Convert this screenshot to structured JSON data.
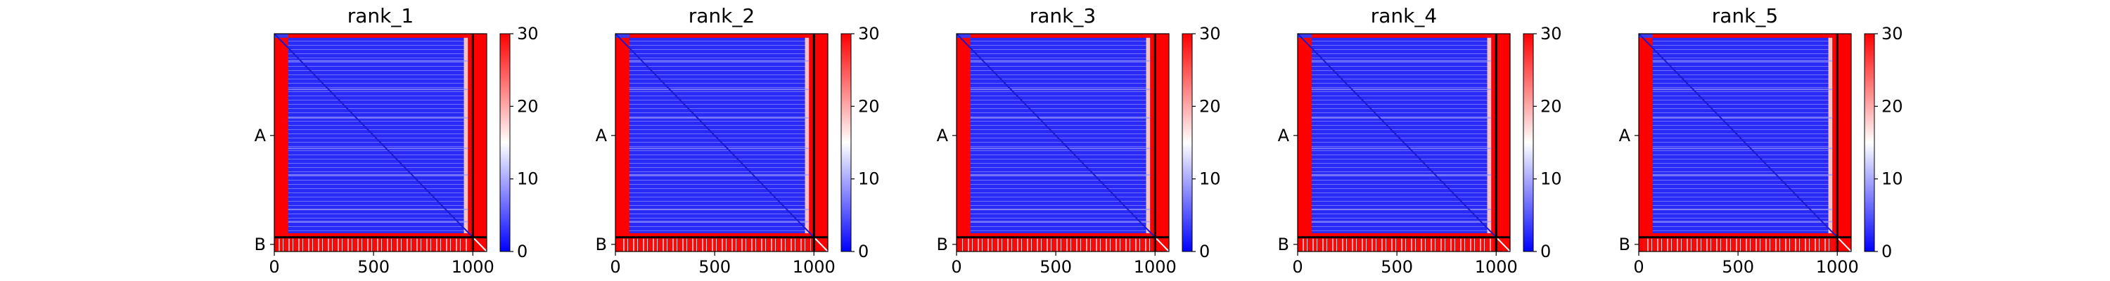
{
  "chart_data": [
    {
      "type": "heatmap",
      "title": "rank_1",
      "x_ticks": [
        "0",
        "500",
        "1000"
      ],
      "x_tick_values": [
        0,
        500,
        1000
      ],
      "y_chain_labels": [
        "A",
        "B"
      ],
      "chain_boundary": 1000,
      "total_length": 1070,
      "colorbar": {
        "min": 0,
        "max": 30,
        "ticks": [
          "0",
          "10",
          "20",
          "30"
        ],
        "colormap": "bwr"
      },
      "matrix_summary": "low values (blue) in chain A x chain A block with dark blue diagonal; high values (red) in edge rows/columns and chain B blocks"
    },
    {
      "type": "heatmap",
      "title": "rank_2",
      "x_ticks": [
        "0",
        "500",
        "1000"
      ],
      "x_tick_values": [
        0,
        500,
        1000
      ],
      "y_chain_labels": [
        "A",
        "B"
      ],
      "chain_boundary": 1000,
      "total_length": 1070,
      "colorbar": {
        "min": 0,
        "max": 30,
        "ticks": [
          "0",
          "10",
          "20",
          "30"
        ],
        "colormap": "bwr"
      }
    },
    {
      "type": "heatmap",
      "title": "rank_3",
      "x_ticks": [
        "0",
        "500",
        "1000"
      ],
      "x_tick_values": [
        0,
        500,
        1000
      ],
      "y_chain_labels": [
        "A",
        "B"
      ],
      "chain_boundary": 1000,
      "total_length": 1070,
      "colorbar": {
        "min": 0,
        "max": 30,
        "ticks": [
          "0",
          "10",
          "20",
          "30"
        ],
        "colormap": "bwr"
      }
    },
    {
      "type": "heatmap",
      "title": "rank_4",
      "x_ticks": [
        "0",
        "500",
        "1000"
      ],
      "x_tick_values": [
        0,
        500,
        1000
      ],
      "y_chain_labels": [
        "A",
        "B"
      ],
      "chain_boundary": 1000,
      "total_length": 1070,
      "colorbar": {
        "min": 0,
        "max": 30,
        "ticks": [
          "0",
          "10",
          "20",
          "30"
        ],
        "colormap": "bwr"
      }
    },
    {
      "type": "heatmap",
      "title": "rank_5",
      "x_ticks": [
        "0",
        "500",
        "1000"
      ],
      "x_tick_values": [
        0,
        500,
        1000
      ],
      "y_chain_labels": [
        "A",
        "B"
      ],
      "chain_boundary": 1000,
      "total_length": 1070,
      "colorbar": {
        "min": 0,
        "max": 30,
        "ticks": [
          "0",
          "10",
          "20",
          "30"
        ],
        "colormap": "bwr"
      }
    }
  ],
  "colors": {
    "low": "#0000ff",
    "mid": "#ffffff",
    "high": "#ff0000",
    "diagonal": "#1a1ad0",
    "boundary_line": "#000000"
  }
}
